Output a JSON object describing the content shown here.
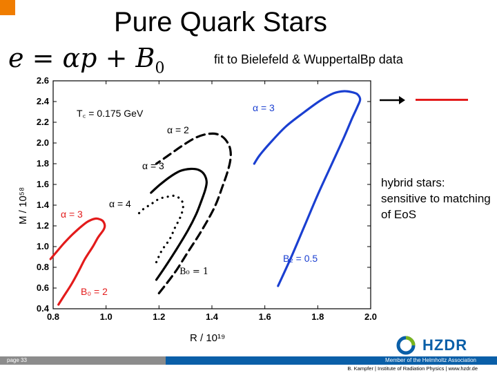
{
  "slide": {
    "title": "Pure Quark Stars",
    "formula": "e = αp + B₀",
    "subtitle": "fit to Bielefeld & WuppertalBp data",
    "note": "hybrid stars: sensitive to matching of EoS",
    "page_label": "page 33",
    "footer_member": "Member of the Helmholtz Association",
    "footer_credit": "B. Kampfer | Institute of Radiation Physics | www.hzdr.de",
    "logo_text": "HZDR",
    "colors": {
      "accent_orange": "#f07d00",
      "footer_blue": "#0a5fa8",
      "footer_gray": "#8c8c8c",
      "red": "#e31b1b",
      "blue": "#1a3fd1",
      "black": "#000000"
    }
  },
  "chart_data": {
    "type": "line",
    "xlabel": "R / 10¹⁹",
    "ylabel": "M / 10⁵⁸",
    "xlim": [
      0.8,
      2.0
    ],
    "ylim": [
      0.4,
      2.6
    ],
    "xticks": [
      "0.8",
      "1.0",
      "1.2",
      "1.4",
      "1.6",
      "1.8",
      "2.0"
    ],
    "yticks": [
      "0.4",
      "0.6",
      "0.8",
      "1.0",
      "1.2",
      "1.4",
      "1.6",
      "1.8",
      "2.0",
      "2.2",
      "2.4",
      "2.6"
    ],
    "grid": false,
    "annotations": {
      "tc": "T꜀ = 0.175 GeV",
      "red_alpha": "α = 3",
      "red_b": "B₀ = 2",
      "dashed_alpha": "α = 2",
      "solid_alpha": "α = 3",
      "dotted_alpha": "α = 4",
      "black_b": "B₀ = 1",
      "blue_alpha": "α = 3",
      "blue_b": "B₂ = 0.5"
    },
    "series": [
      {
        "key": "red",
        "color": "#e31b1b",
        "style": "solid",
        "x": [
          0.82,
          0.84,
          0.87,
          0.9,
          0.92,
          0.95,
          0.97,
          0.99,
          0.995,
          0.99,
          0.98,
          0.96,
          0.93,
          0.9,
          0.87,
          0.84,
          0.81,
          0.79
        ],
        "y": [
          0.44,
          0.52,
          0.64,
          0.78,
          0.88,
          1.0,
          1.09,
          1.16,
          1.2,
          1.24,
          1.26,
          1.27,
          1.24,
          1.18,
          1.11,
          1.03,
          0.94,
          0.88
        ]
      },
      {
        "key": "blue",
        "color": "#1a3fd1",
        "style": "solid",
        "x": [
          1.65,
          1.7,
          1.75,
          1.8,
          1.85,
          1.9,
          1.93,
          1.95,
          1.96,
          1.95,
          1.93,
          1.9,
          1.86,
          1.81,
          1.75,
          1.68,
          1.62,
          1.58,
          1.56
        ],
        "y": [
          0.62,
          0.9,
          1.2,
          1.5,
          1.78,
          2.06,
          2.24,
          2.35,
          2.42,
          2.47,
          2.49,
          2.5,
          2.48,
          2.41,
          2.3,
          2.16,
          2.0,
          1.88,
          1.8
        ]
      },
      {
        "key": "black-dashed",
        "color": "#000000",
        "style": "dashed",
        "x": [
          1.2,
          1.26,
          1.31,
          1.36,
          1.41,
          1.44,
          1.46,
          1.47,
          1.47,
          1.46,
          1.44,
          1.41,
          1.37,
          1.33,
          1.28,
          1.23,
          1.19
        ],
        "y": [
          0.55,
          0.75,
          0.95,
          1.15,
          1.38,
          1.58,
          1.73,
          1.84,
          1.93,
          2.0,
          2.06,
          2.09,
          2.08,
          2.04,
          1.96,
          1.87,
          1.8
        ]
      },
      {
        "key": "black-solid",
        "color": "#000000",
        "style": "solid",
        "x": [
          1.19,
          1.23,
          1.27,
          1.31,
          1.34,
          1.36,
          1.375,
          1.38,
          1.37,
          1.35,
          1.32,
          1.28,
          1.24,
          1.2,
          1.17
        ],
        "y": [
          0.68,
          0.83,
          0.99,
          1.16,
          1.31,
          1.44,
          1.55,
          1.63,
          1.7,
          1.74,
          1.75,
          1.73,
          1.67,
          1.59,
          1.52
        ]
      },
      {
        "key": "black-dotted",
        "color": "#000000",
        "style": "dotted",
        "x": [
          1.19,
          1.21,
          1.24,
          1.26,
          1.28,
          1.29,
          1.29,
          1.28,
          1.26,
          1.23,
          1.2,
          1.17,
          1.14,
          1.12
        ],
        "y": [
          0.85,
          0.96,
          1.07,
          1.18,
          1.28,
          1.36,
          1.42,
          1.46,
          1.49,
          1.48,
          1.46,
          1.41,
          1.36,
          1.31
        ]
      }
    ]
  }
}
